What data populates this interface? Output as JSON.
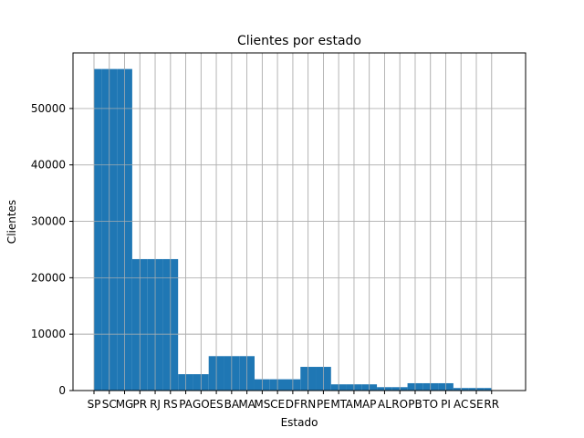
{
  "chart_data": {
    "type": "bar",
    "title": "Clientes por estado",
    "xlabel": "Estado",
    "ylabel": "Clientes",
    "categories": [
      "SP",
      "SC",
      "MG",
      "PR",
      "RJ",
      "RS",
      "PA",
      "GO",
      "ES",
      "BA",
      "MA",
      "MS",
      "CE",
      "DF",
      "RN",
      "PE",
      "MT",
      "AM",
      "AP",
      "AL",
      "RO",
      "PB",
      "TO",
      "PI",
      "AC",
      "SE",
      "RR"
    ],
    "bins": [
      {
        "value": 57000
      },
      {
        "value": 57000
      },
      {
        "value": 57000
      },
      {
        "value": 23300
      },
      {
        "value": 23300
      },
      {
        "value": 23300
      },
      {
        "value": 2900
      },
      {
        "value": 2900
      },
      {
        "value": 6100
      },
      {
        "value": 6100
      },
      {
        "value": 6100
      },
      {
        "value": 2000
      },
      {
        "value": 2000
      },
      {
        "value": 2000
      },
      {
        "value": 4200
      },
      {
        "value": 4200
      },
      {
        "value": 1100
      },
      {
        "value": 1100
      },
      {
        "value": 1100
      },
      {
        "value": 600
      },
      {
        "value": 600
      },
      {
        "value": 1300
      },
      {
        "value": 1300
      },
      {
        "value": 1300
      },
      {
        "value": 450
      },
      {
        "value": 450
      },
      {
        "value": 450
      }
    ],
    "yticks": [
      0,
      10000,
      20000,
      30000,
      40000,
      50000
    ],
    "ylim": [
      0,
      59850
    ],
    "grid": true,
    "bar_color": "#1f77b4"
  }
}
